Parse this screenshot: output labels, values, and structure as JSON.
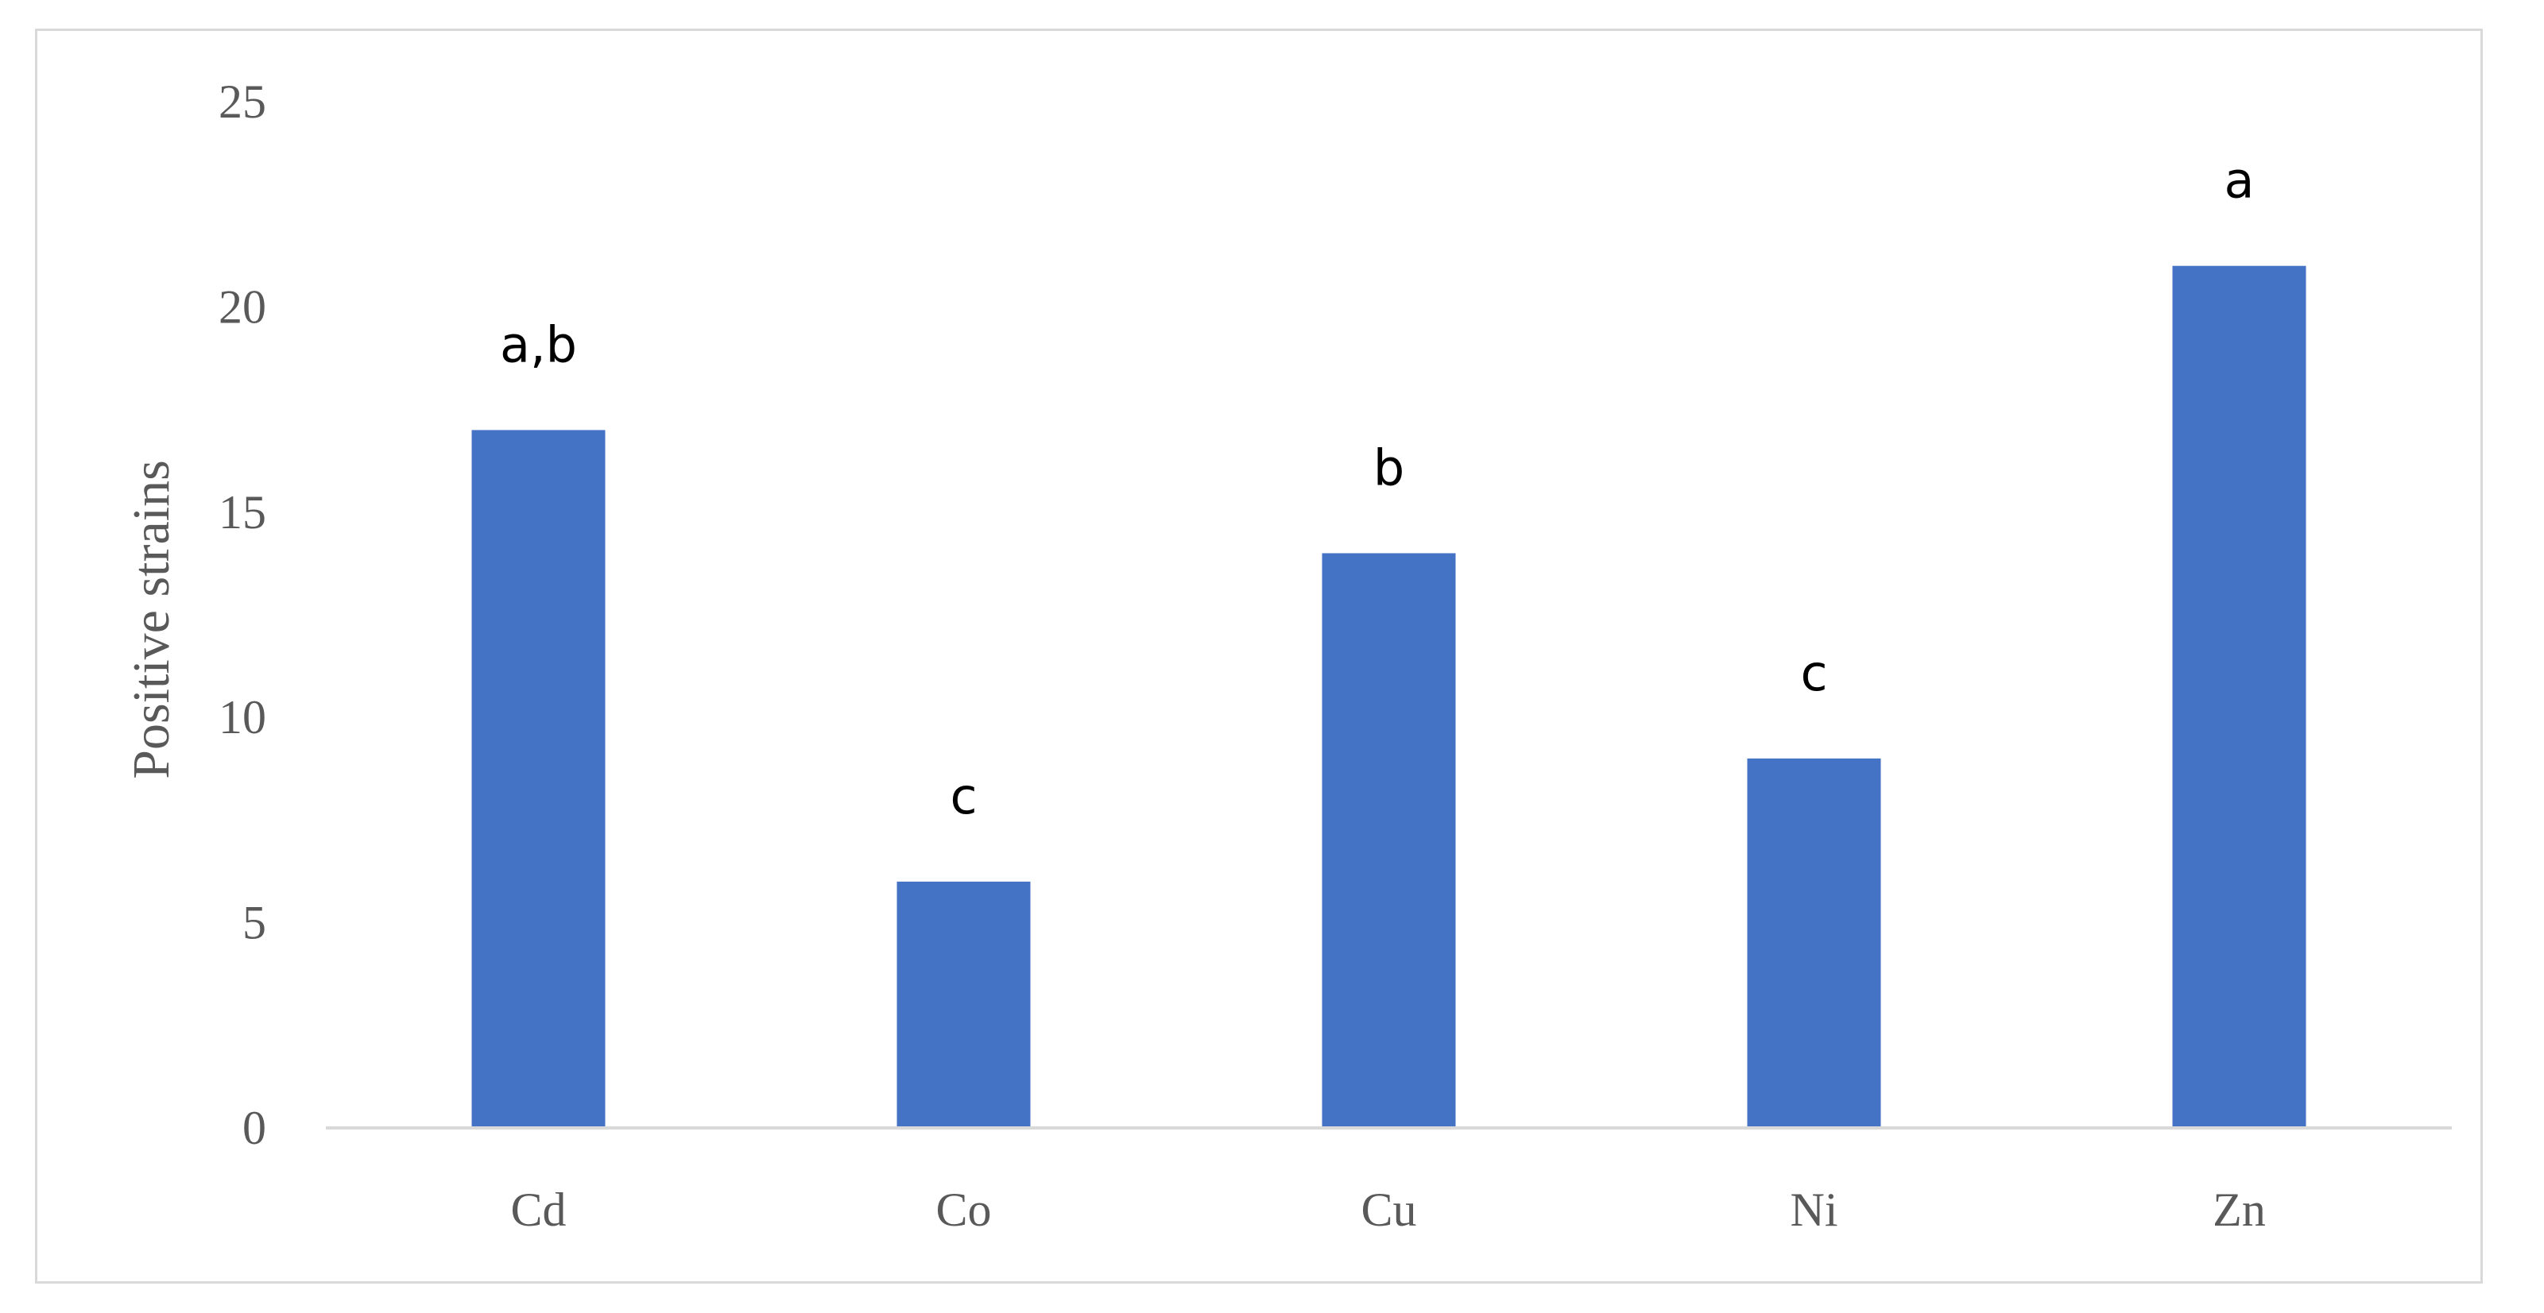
{
  "chart_data": {
    "type": "bar",
    "categories": [
      "Cd",
      "Co",
      "Cu",
      "Ni",
      "Zn"
    ],
    "values": [
      17,
      6,
      14,
      9,
      21
    ],
    "data_labels": [
      "a,b",
      "c",
      "b",
      "c",
      "a"
    ],
    "title": "",
    "xlabel": "",
    "ylabel": "Positive strains",
    "ylim": [
      0,
      25
    ],
    "yticks": [
      0,
      5,
      10,
      15,
      20,
      25
    ],
    "grid": false,
    "legend": "none",
    "bar_color": "#4472C4",
    "axis_color": "#d9d9d9"
  }
}
